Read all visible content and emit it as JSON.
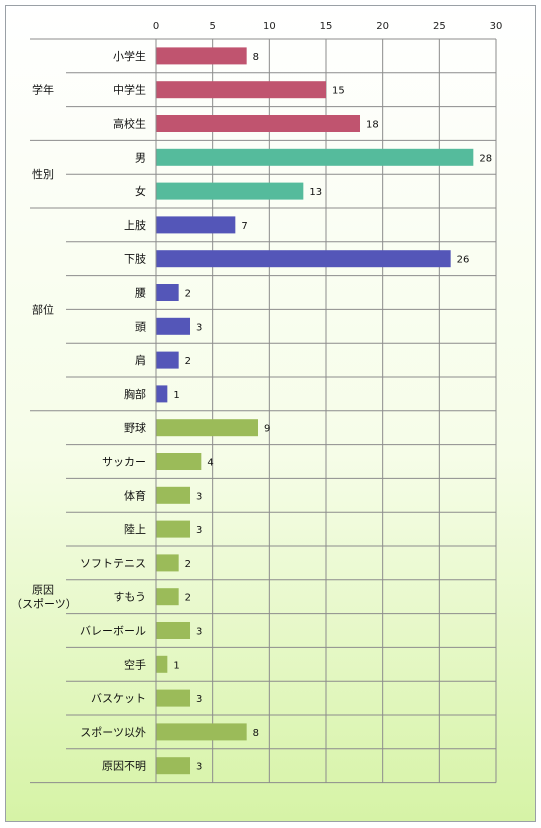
{
  "chart_data": {
    "type": "bar",
    "orientation": "horizontal",
    "title": "",
    "xlabel": "",
    "ylabel": "",
    "xlim": [
      0,
      30
    ],
    "xticks": [
      0,
      5,
      10,
      15,
      20,
      25,
      30
    ],
    "grid": true,
    "legend": "none",
    "groups": [
      {
        "label": [
          "学年"
        ],
        "color": "#c0546f",
        "items": [
          {
            "category": "小学生",
            "value": 8
          },
          {
            "category": "中学生",
            "value": 15
          },
          {
            "category": "高校生",
            "value": 18
          }
        ]
      },
      {
        "label": [
          "性別"
        ],
        "color": "#55bb9c",
        "items": [
          {
            "category": "男",
            "value": 28
          },
          {
            "category": "女",
            "value": 13
          }
        ]
      },
      {
        "label": [
          "部位"
        ],
        "color": "#5456b8",
        "items": [
          {
            "category": "上肢",
            "value": 7
          },
          {
            "category": "下肢",
            "value": 26
          },
          {
            "category": "腰",
            "value": 2
          },
          {
            "category": "頭",
            "value": 3
          },
          {
            "category": "肩",
            "value": 2
          },
          {
            "category": "胸部",
            "value": 1
          }
        ]
      },
      {
        "label": [
          "原因",
          "（スポーツ）"
        ],
        "color": "#9bbb59",
        "items": [
          {
            "category": "野球",
            "value": 9
          },
          {
            "category": "サッカー",
            "value": 4
          },
          {
            "category": "体育",
            "value": 3
          },
          {
            "category": "陸上",
            "value": 3
          },
          {
            "category": "ソフトテニス",
            "value": 2
          },
          {
            "category": "すもう",
            "value": 2
          },
          {
            "category": "バレーボール",
            "value": 3
          },
          {
            "category": "空手",
            "value": 1
          },
          {
            "category": "バスケット",
            "value": 3
          },
          {
            "category": "スポーツ以外",
            "value": 8
          },
          {
            "category": "原因不明",
            "value": 3
          }
        ]
      }
    ]
  }
}
